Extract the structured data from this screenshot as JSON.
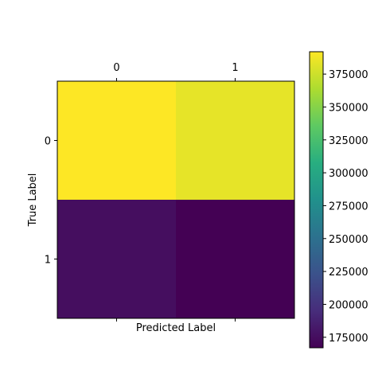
{
  "chart_data": {
    "type": "heatmap",
    "title": "",
    "xlabel": "Predicted Label",
    "ylabel": "True Label",
    "x_categories": [
      "0",
      "1"
    ],
    "y_categories": [
      "0",
      "1"
    ],
    "values": [
      [
        392000,
        384000
      ],
      [
        175000,
        167000
      ]
    ],
    "colormap": "viridis",
    "colorbar": {
      "min": 167000,
      "max": 392000,
      "ticks": [
        175000,
        200000,
        225000,
        250000,
        275000,
        300000,
        325000,
        350000,
        375000
      ],
      "tick_labels": [
        "175000",
        "200000",
        "225000",
        "250000",
        "275000",
        "300000",
        "325000",
        "350000",
        "375000"
      ]
    },
    "x_tick_position": "top",
    "grid": false
  }
}
